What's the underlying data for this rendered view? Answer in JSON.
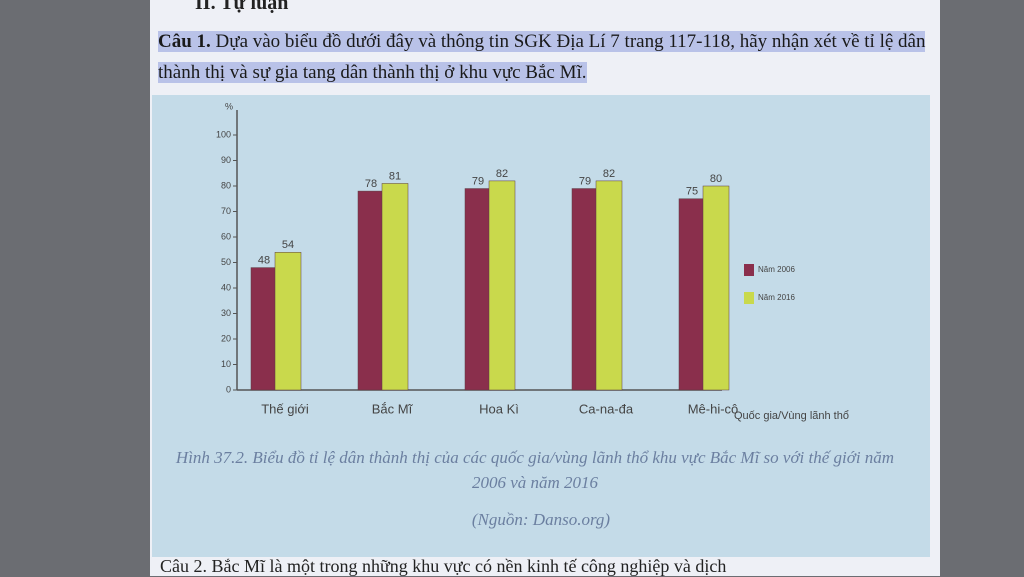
{
  "heading": "II. Tự luận",
  "question": {
    "label": "Câu 1.",
    "text": "Dựa vào biểu đồ dưới đây và thông tin SGK Địa Lí 7 trang 117-118, hãy nhận xét về tỉ lệ dân thành thị và sự gia tang dân thành thị ở khu vực Bắc Mĩ."
  },
  "chart_data": {
    "type": "bar",
    "y_label": "%",
    "x_label": "Quốc gia/Vùng lãnh thổ",
    "categories": [
      "Thế giới",
      "Bắc Mĩ",
      "Hoa Kì",
      "Ca-na-đa",
      "Mê-hi-cô"
    ],
    "series": [
      {
        "name": "Năm 2006",
        "color": "#8a2f4c",
        "values": [
          48,
          78,
          79,
          79,
          75
        ]
      },
      {
        "name": "Năm 2016",
        "color": "#c9d94c",
        "values": [
          54,
          81,
          82,
          82,
          80
        ]
      }
    ],
    "ylim": [
      0,
      100
    ],
    "yticks": [
      0,
      10,
      20,
      30,
      40,
      50,
      60,
      70,
      80,
      90,
      100
    ],
    "caption": "Hình 37.2. Biểu đồ tỉ lệ dân thành thị của các quốc gia/vùng lãnh thổ khu vực Bắc Mĩ so với thế giới năm 2006 và năm 2016",
    "source": "(Nguồn: Danso.org)"
  },
  "next_question": "Câu 2. Bắc Mĩ là một trong những khu vực có nền kinh tế công nghiệp và dịch"
}
